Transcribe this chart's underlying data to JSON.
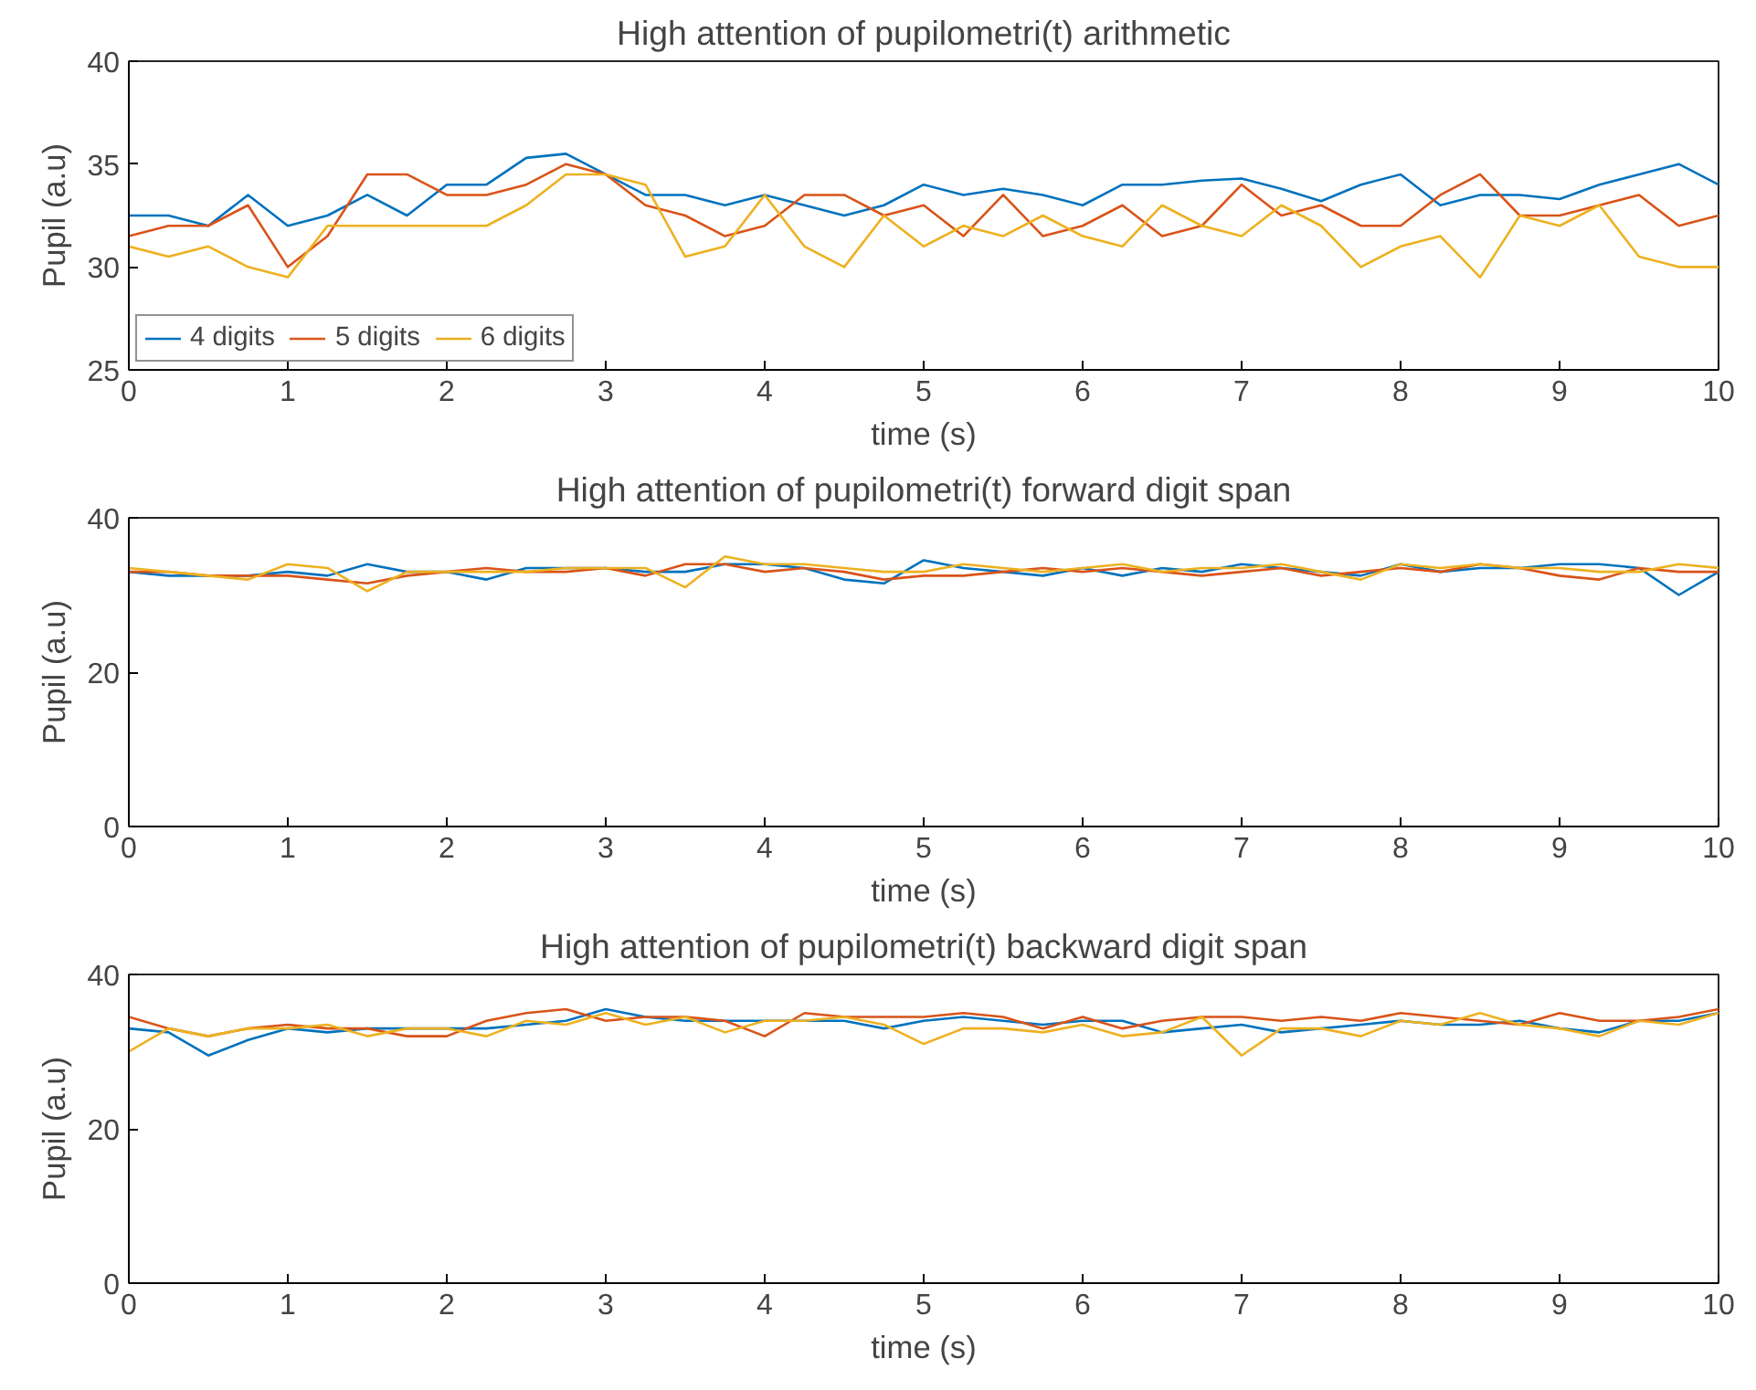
{
  "chart_data": [
    {
      "type": "line",
      "title": "High attention of pupilometri(t) arithmetic",
      "xlabel": "time (s)",
      "ylabel": "Pupil (a.u)",
      "x": [
        0,
        0.25,
        0.5,
        0.75,
        1,
        1.25,
        1.5,
        1.75,
        2,
        2.25,
        2.5,
        2.75,
        3,
        3.25,
        3.5,
        3.75,
        4,
        4.25,
        4.5,
        4.75,
        5,
        5.25,
        5.5,
        5.75,
        6,
        6.25,
        6.5,
        6.75,
        7,
        7.25,
        7.5,
        7.75,
        8,
        8.25,
        8.5,
        8.75,
        9,
        9.25,
        9.5,
        9.75,
        10
      ],
      "xlim": [
        0,
        10
      ],
      "ylim": [
        25,
        40
      ],
      "xticks": [
        0,
        1,
        2,
        3,
        4,
        5,
        6,
        7,
        8,
        9,
        10
      ],
      "yticks": [
        25,
        30,
        35,
        40
      ],
      "legend": "bottom left",
      "series": [
        {
          "name": "4 digits",
          "color": "#0072bd",
          "values": [
            32.5,
            32.5,
            32,
            33.5,
            32,
            32.5,
            33.5,
            32.5,
            34,
            34,
            35.3,
            35.5,
            34.5,
            33.5,
            33.5,
            33,
            33.5,
            33,
            32.5,
            33,
            34,
            33.5,
            33.8,
            33.5,
            33,
            34,
            34,
            34.2,
            34.3,
            33.8,
            33.2,
            34,
            34.5,
            33,
            33.5,
            33.5,
            33.3,
            34,
            34.5,
            35,
            34
          ]
        },
        {
          "name": "5 digits",
          "color": "#d95319",
          "values": [
            31.5,
            32,
            32,
            33,
            30,
            31.5,
            34.5,
            34.5,
            33.5,
            33.5,
            34,
            35,
            34.5,
            33,
            32.5,
            31.5,
            32,
            33.5,
            33.5,
            32.5,
            33,
            31.5,
            33.5,
            31.5,
            32,
            33,
            31.5,
            32,
            34,
            32.5,
            33,
            32,
            32,
            33.5,
            34.5,
            32.5,
            32.5,
            33,
            33.5,
            32,
            32.5
          ]
        },
        {
          "name": "6 digits",
          "color": "#edb120",
          "values": [
            31,
            30.5,
            31,
            30,
            29.5,
            32,
            32,
            32,
            32,
            32,
            33,
            34.5,
            34.5,
            34,
            30.5,
            31,
            33.5,
            31,
            30,
            32.5,
            31,
            32,
            31.5,
            32.5,
            31.5,
            31,
            33,
            32,
            31.5,
            33,
            32,
            30,
            31,
            31.5,
            29.5,
            32.5,
            32,
            33,
            30.5,
            30,
            30
          ]
        }
      ]
    },
    {
      "type": "line",
      "title": "High attention of pupilometri(t) forward digit span",
      "xlabel": "time (s)",
      "ylabel": "Pupil (a.u)",
      "x": [
        0,
        0.25,
        0.5,
        0.75,
        1,
        1.25,
        1.5,
        1.75,
        2,
        2.25,
        2.5,
        2.75,
        3,
        3.25,
        3.5,
        3.75,
        4,
        4.25,
        4.5,
        4.75,
        5,
        5.25,
        5.5,
        5.75,
        6,
        6.25,
        6.5,
        6.75,
        7,
        7.25,
        7.5,
        7.75,
        8,
        8.25,
        8.5,
        8.75,
        9,
        9.25,
        9.5,
        9.75,
        10
      ],
      "xlim": [
        0,
        10
      ],
      "ylim": [
        0,
        40
      ],
      "xticks": [
        0,
        1,
        2,
        3,
        4,
        5,
        6,
        7,
        8,
        9,
        10
      ],
      "yticks": [
        0,
        20,
        40
      ],
      "series": [
        {
          "color": "#0072bd",
          "values": [
            33,
            32.5,
            32.5,
            32.5,
            33,
            32.5,
            34,
            33,
            33,
            32,
            33.5,
            33.5,
            33.5,
            33,
            33,
            34,
            34,
            33.5,
            32,
            31.5,
            34.5,
            33.5,
            33,
            32.5,
            33.5,
            32.5,
            33.5,
            33,
            34,
            33.5,
            33,
            32.5,
            34,
            33,
            33.5,
            33.5,
            34,
            34,
            33.5,
            30,
            33
          ]
        },
        {
          "color": "#d95319",
          "values": [
            33,
            33,
            32.5,
            32.5,
            32.5,
            32,
            31.5,
            32.5,
            33,
            33.5,
            33,
            33,
            33.5,
            32.5,
            34,
            34,
            33,
            33.5,
            33,
            32,
            32.5,
            32.5,
            33,
            33.5,
            33,
            33.5,
            33,
            32.5,
            33,
            33.5,
            32.5,
            33,
            33.5,
            33,
            34,
            33.5,
            32.5,
            32,
            33.5,
            33,
            33
          ]
        },
        {
          "color": "#edb120",
          "values": [
            33.5,
            33,
            32.5,
            32,
            34,
            33.5,
            30.5,
            33,
            33,
            33,
            33,
            33.5,
            33.5,
            33.5,
            31,
            35,
            34,
            34,
            33.5,
            33,
            33,
            34,
            33.5,
            33,
            33.5,
            34,
            33,
            33.5,
            33.5,
            34,
            33,
            32,
            34,
            33.5,
            34,
            33.5,
            33.5,
            33,
            33,
            34,
            33.5
          ]
        }
      ]
    },
    {
      "type": "line",
      "title": "High attention of pupilometri(t) backward digit span",
      "xlabel": "time (s)",
      "ylabel": "Pupil (a.u)",
      "x": [
        0,
        0.25,
        0.5,
        0.75,
        1,
        1.25,
        1.5,
        1.75,
        2,
        2.25,
        2.5,
        2.75,
        3,
        3.25,
        3.5,
        3.75,
        4,
        4.25,
        4.5,
        4.75,
        5,
        5.25,
        5.5,
        5.75,
        6,
        6.25,
        6.5,
        6.75,
        7,
        7.25,
        7.5,
        7.75,
        8,
        8.25,
        8.5,
        8.75,
        9,
        9.25,
        9.5,
        9.75,
        10
      ],
      "xlim": [
        0,
        10
      ],
      "ylim": [
        0,
        40
      ],
      "xticks": [
        0,
        1,
        2,
        3,
        4,
        5,
        6,
        7,
        8,
        9,
        10
      ],
      "yticks": [
        0,
        20,
        40
      ],
      "series": [
        {
          "color": "#0072bd",
          "values": [
            33,
            32.5,
            29.5,
            31.5,
            33,
            32.5,
            33,
            33,
            33,
            33,
            33.5,
            34,
            35.5,
            34.5,
            34,
            34,
            34,
            34,
            34,
            33,
            34,
            34.5,
            34,
            33.5,
            34,
            34,
            32.5,
            33,
            33.5,
            32.5,
            33,
            33.5,
            34,
            33.5,
            33.5,
            34,
            33,
            32.5,
            34,
            34,
            35
          ]
        },
        {
          "color": "#d95319",
          "values": [
            34.5,
            33,
            32,
            33,
            33.5,
            33,
            33,
            32,
            32,
            34,
            35,
            35.5,
            34,
            34.5,
            34.5,
            34,
            32,
            35,
            34.5,
            34.5,
            34.5,
            35,
            34.5,
            33,
            34.5,
            33,
            34,
            34.5,
            34.5,
            34,
            34.5,
            34,
            35,
            34.5,
            34,
            33.5,
            35,
            34,
            34,
            34.5,
            35.5
          ]
        },
        {
          "color": "#edb120",
          "values": [
            30,
            33,
            32,
            33,
            33,
            33.5,
            32,
            33,
            33,
            32,
            34,
            33.5,
            35,
            33.5,
            34.5,
            32.5,
            34,
            34,
            34.5,
            33.5,
            31,
            33,
            33,
            32.5,
            33.5,
            32,
            32.5,
            34.5,
            29.5,
            33,
            33,
            32,
            34,
            33.5,
            35,
            33.5,
            33,
            32,
            34,
            33.5,
            35
          ]
        }
      ]
    }
  ]
}
